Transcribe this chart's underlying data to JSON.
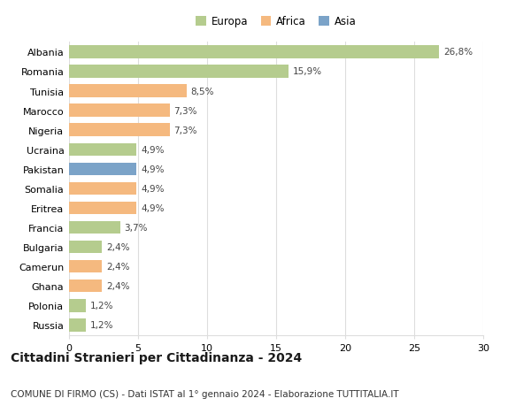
{
  "categories": [
    "Albania",
    "Romania",
    "Tunisia",
    "Marocco",
    "Nigeria",
    "Ucraina",
    "Pakistan",
    "Somalia",
    "Eritrea",
    "Francia",
    "Bulgaria",
    "Camerun",
    "Ghana",
    "Polonia",
    "Russia"
  ],
  "values": [
    26.8,
    15.9,
    8.5,
    7.3,
    7.3,
    4.9,
    4.9,
    4.9,
    4.9,
    3.7,
    2.4,
    2.4,
    2.4,
    1.2,
    1.2
  ],
  "labels": [
    "26,8%",
    "15,9%",
    "8,5%",
    "7,3%",
    "7,3%",
    "4,9%",
    "4,9%",
    "4,9%",
    "4,9%",
    "3,7%",
    "2,4%",
    "2,4%",
    "2,4%",
    "1,2%",
    "1,2%"
  ],
  "colors": [
    "#b5cc8e",
    "#b5cc8e",
    "#f5b97f",
    "#f5b97f",
    "#f5b97f",
    "#b5cc8e",
    "#7ba3c8",
    "#f5b97f",
    "#f5b97f",
    "#b5cc8e",
    "#b5cc8e",
    "#f5b97f",
    "#f5b97f",
    "#b5cc8e",
    "#b5cc8e"
  ],
  "legend_labels": [
    "Europa",
    "Africa",
    "Asia"
  ],
  "legend_colors": [
    "#b5cc8e",
    "#f5b97f",
    "#7ba3c8"
  ],
  "title": "Cittadini Stranieri per Cittadinanza - 2024",
  "subtitle": "COMUNE DI FIRMO (CS) - Dati ISTAT al 1° gennaio 2024 - Elaborazione TUTTITALIA.IT",
  "xlim": [
    0,
    30
  ],
  "xticks": [
    0,
    5,
    10,
    15,
    20,
    25,
    30
  ],
  "background_color": "#ffffff",
  "grid_color": "#dddddd",
  "title_fontsize": 10,
  "subtitle_fontsize": 7.5,
  "bar_label_fontsize": 7.5,
  "tick_fontsize": 8,
  "legend_fontsize": 8.5
}
